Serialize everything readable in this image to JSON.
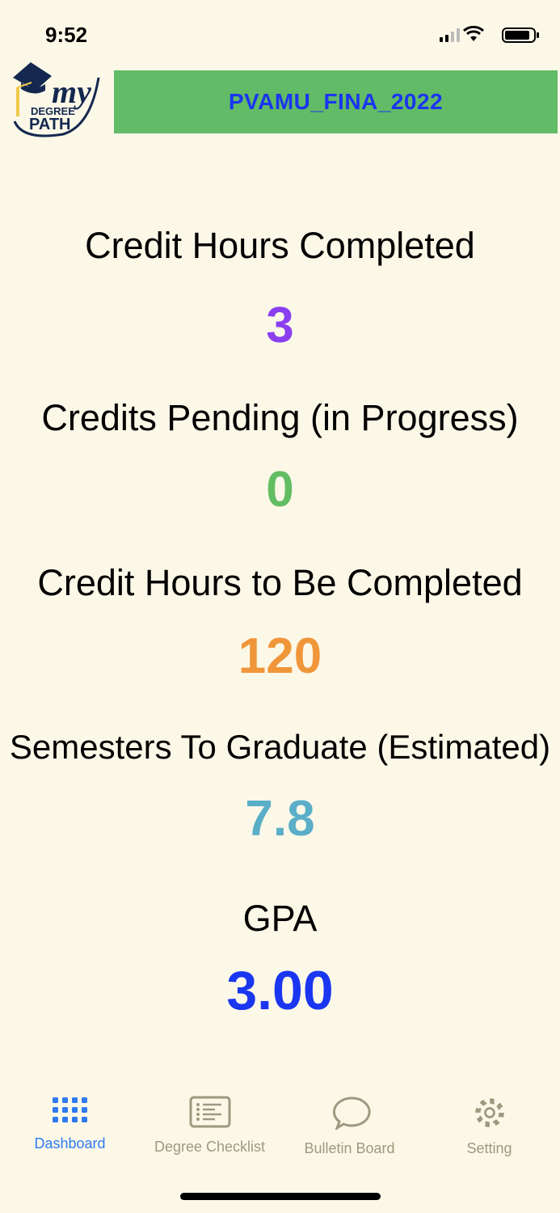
{
  "status_bar": {
    "time": "9:52"
  },
  "header": {
    "logo_text": "my DEGREE PATH",
    "title": "PVAMU_FINA_2022"
  },
  "stats": [
    {
      "label": "Credit Hours Completed",
      "value": "3",
      "color": "#8a3ff0"
    },
    {
      "label": "Credits Pending (in Progress)",
      "value": "0",
      "color": "#63bd63"
    },
    {
      "label": "Credit Hours to Be Completed",
      "value": "120",
      "color": "#f0963a"
    },
    {
      "label": "Semesters To Graduate (Estimated)",
      "value": "7.8",
      "color": "#5aaec8"
    },
    {
      "label": "GPA",
      "value": "3.00",
      "color": "#1a36f0"
    }
  ],
  "tab_bar": {
    "active": "Dashboard",
    "tabs": [
      {
        "label": "Dashboard",
        "icon": "grid-icon"
      },
      {
        "label": "Degree Checklist",
        "icon": "checklist-icon"
      },
      {
        "label": "Bulletin Board",
        "icon": "chat-bubble-icon"
      },
      {
        "label": "Setting",
        "icon": "gear-icon"
      }
    ]
  }
}
